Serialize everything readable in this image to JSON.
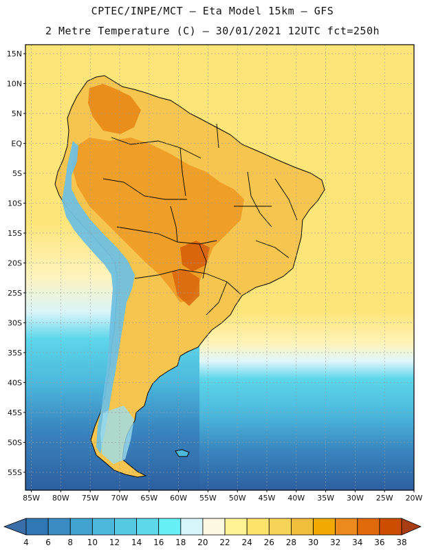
{
  "header": {
    "line1": "CPTEC/INPE/MCT –  Eta Model 15km – GFS",
    "line2": "2 Metre Temperature (C) – 30/01/2021 12UTC fct=250h"
  },
  "axes": {
    "lat_labels": [
      "15N",
      "10N",
      "5N",
      "EQ",
      "5S",
      "10S",
      "15S",
      "20S",
      "25S",
      "30S",
      "35S",
      "40S",
      "45S",
      "50S",
      "55S"
    ],
    "lon_labels": [
      "85W",
      "80W",
      "75W",
      "70W",
      "65W",
      "60W",
      "55W",
      "50W",
      "45W",
      "40W",
      "35W",
      "30W",
      "25W",
      "20W"
    ],
    "lat_range": [
      16.5,
      -58
    ],
    "lon_range": [
      -86,
      -20
    ]
  },
  "colorbar": {
    "levels": [
      "4",
      "6",
      "8",
      "10",
      "12",
      "14",
      "16",
      "18",
      "20",
      "22",
      "24",
      "26",
      "28",
      "30",
      "32",
      "34",
      "36",
      "38"
    ],
    "colors": [
      "#3a6ea8",
      "#2f78b4",
      "#3a8cc2",
      "#42a2d0",
      "#4db8db",
      "#55c8e2",
      "#5cd8ea",
      "#66f0f5",
      "#d6f6fb",
      "#fdf8e2",
      "#fff293",
      "#fde26c",
      "#f6d458",
      "#f0be3a",
      "#f2aa00",
      "#ec8a1e",
      "#e06a0a",
      "#cc4d00",
      "#a83c12"
    ]
  },
  "legend_colors": {
    "ocean_cold": "#2d5fa0",
    "ocean_mid": "#4bb8dc",
    "ocean_cyan": "#5dd6ea",
    "ocean_warm": "#fde57a",
    "land_hot": "#ee9a22",
    "land_warm": "#f6c550",
    "andes": "#6fc0e0"
  },
  "chart_data": {
    "type": "heatmap",
    "variable": "2 Metre Temperature (C)",
    "model": "Eta Model 15km – GFS",
    "run": "30/01/2021 12UTC",
    "forecast_hour": 250,
    "x_axis": "longitude",
    "y_axis": "latitude",
    "xlim": [
      -86,
      -20
    ],
    "ylim": [
      -58,
      16.5
    ],
    "grid": true,
    "colorbar_position": "bottom",
    "colorbar_levels": [
      4,
      6,
      8,
      10,
      12,
      14,
      16,
      18,
      20,
      22,
      24,
      26,
      28,
      30,
      32,
      34,
      36,
      38
    ]
  }
}
